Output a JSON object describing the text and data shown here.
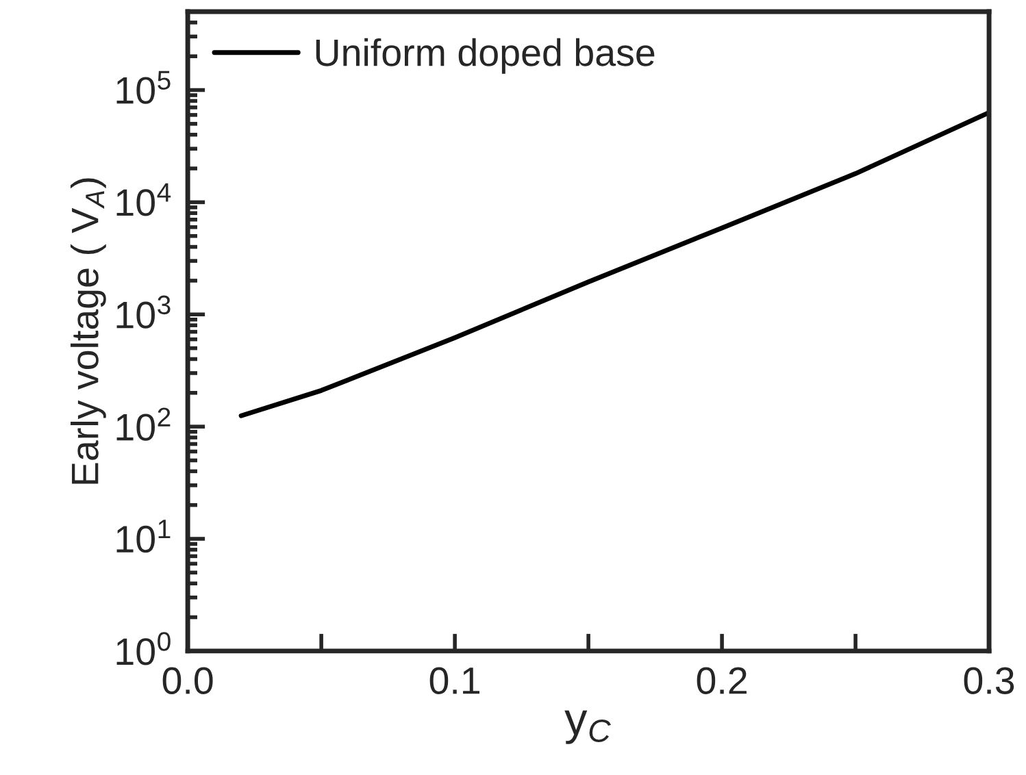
{
  "chart_data": {
    "type": "line",
    "xlabel": "y$_{C}$",
    "ylabel": "Early voltage ( V$_{A}$)",
    "log": "y",
    "xlim": [
      0.0,
      0.3
    ],
    "ylim": [
      1,
      500000
    ],
    "xticks": [
      {
        "value": 0.0,
        "label": "0.0"
      },
      {
        "value": 0.05,
        "label": null
      },
      {
        "value": 0.1,
        "label": "0.1"
      },
      {
        "value": 0.15,
        "label": null
      },
      {
        "value": 0.2,
        "label": "0.2"
      },
      {
        "value": 0.25,
        "label": null
      },
      {
        "value": 0.3,
        "label": "0.3"
      }
    ],
    "yticks": [
      {
        "value": 1,
        "label": "10$^{0}$"
      },
      {
        "value": 10,
        "label": "10$^{1}$"
      },
      {
        "value": 100,
        "label": "10$^{2}$"
      },
      {
        "value": 1000,
        "label": "10$^{3}$"
      },
      {
        "value": 10000,
        "label": "10$^{4}$"
      },
      {
        "value": 100000,
        "label": "10$^{5}$"
      }
    ],
    "x": [
      0.02,
      0.05,
      0.1,
      0.15,
      0.2,
      0.25,
      0.3
    ],
    "series": [
      {
        "name": "Uniform doped base",
        "color": "#000000",
        "values": [
          125,
          210,
          620,
          1950,
          5900,
          18000,
          63000
        ]
      }
    ],
    "legend": "top left",
    "grid": false,
    "line_style": "solid",
    "marker": "none"
  }
}
